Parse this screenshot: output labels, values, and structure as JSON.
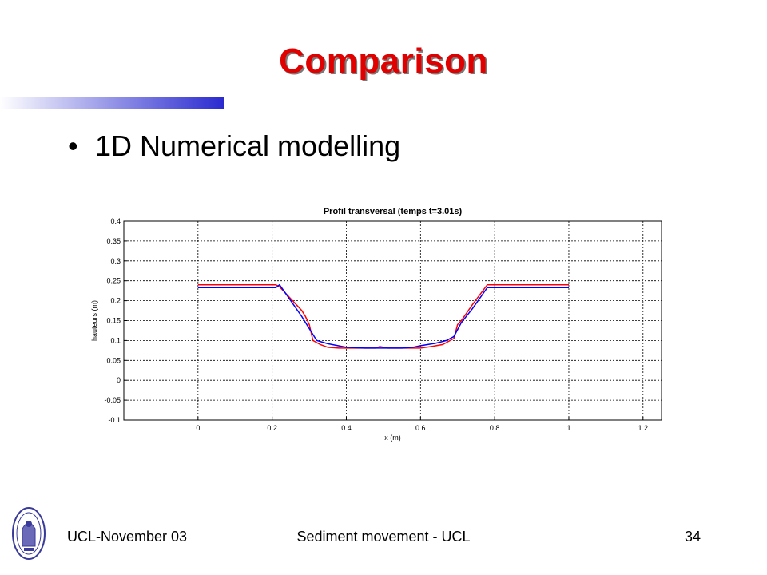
{
  "slide": {
    "title": "Comparison",
    "bullet": "1D Numerical modelling",
    "footer_left": "UCL-November 03",
    "footer_center": "Sediment movement - UCL",
    "page_number": "34",
    "title_color": "#e00000",
    "gradient_colors": [
      "#ffffff",
      "#2a2ad0"
    ],
    "logo_icon": "university-seal-icon"
  },
  "chart_data": {
    "type": "line",
    "title": "Profil transversal (temps t=3.01s)",
    "xlabel": "x (m)",
    "ylabel": "hauteurs (m)",
    "xlim": [
      -0.2,
      1.25
    ],
    "ylim": [
      -0.1,
      0.4
    ],
    "xticks": [
      "0",
      "0.2",
      "0.4",
      "0.6",
      "0.8",
      "1",
      "1.2"
    ],
    "yticks": [
      "-0.1",
      "-0.05",
      "0",
      "0.05",
      "0.1",
      "0.15",
      "0.2",
      "0.25",
      "0.3",
      "0.35",
      "0.4"
    ],
    "grid": true,
    "series": [
      {
        "color": "#ff0000",
        "x": [
          0.0,
          0.21,
          0.22,
          0.25,
          0.28,
          0.29,
          0.3,
          0.31,
          0.33,
          0.35,
          0.38,
          0.4,
          0.43,
          0.46,
          0.48,
          0.49,
          0.5,
          0.51,
          0.53,
          0.56,
          0.6,
          0.63,
          0.66,
          0.68,
          0.69,
          0.7,
          0.71,
          0.74,
          0.78,
          0.79,
          1.0
        ],
        "y": [
          0.24,
          0.24,
          0.235,
          0.205,
          0.175,
          0.16,
          0.14,
          0.1,
          0.09,
          0.083,
          0.081,
          0.081,
          0.081,
          0.081,
          0.081,
          0.085,
          0.083,
          0.081,
          0.081,
          0.081,
          0.081,
          0.085,
          0.09,
          0.1,
          0.105,
          0.14,
          0.15,
          0.19,
          0.24,
          0.24,
          0.24
        ]
      },
      {
        "color": "#0000ff",
        "x": [
          0.0,
          0.21,
          0.22,
          0.25,
          0.28,
          0.3,
          0.32,
          0.35,
          0.4,
          0.45,
          0.5,
          0.55,
          0.58,
          0.6,
          0.64,
          0.67,
          0.69,
          0.71,
          0.74,
          0.78,
          1.0
        ],
        "y": [
          0.233,
          0.233,
          0.24,
          0.2,
          0.16,
          0.13,
          0.1,
          0.092,
          0.083,
          0.081,
          0.081,
          0.081,
          0.083,
          0.087,
          0.093,
          0.1,
          0.11,
          0.145,
          0.18,
          0.233,
          0.233
        ]
      }
    ]
  }
}
